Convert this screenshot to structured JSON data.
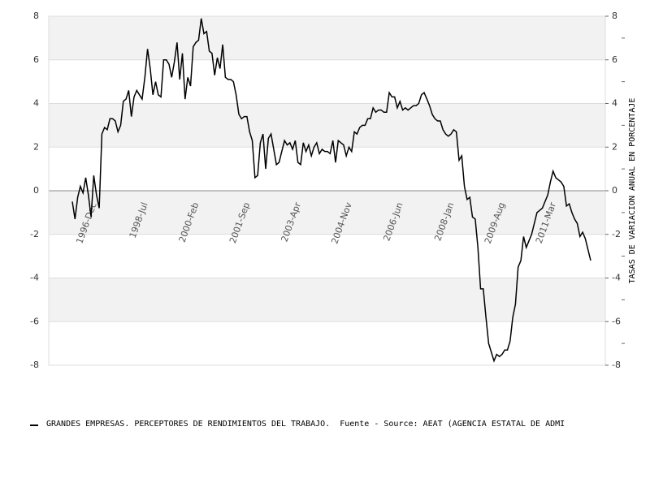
{
  "chart_data": {
    "type": "line",
    "y2label": "TASAS DE VARIACION ANUAL EN PORCENTAJE",
    "source": "Fuente - Source: AEAT (AGENCIA ESTATAL DE ADMI",
    "categories": [
      null,
      null,
      null,
      null,
      null,
      null,
      null,
      "1996-Dec",
      null,
      null,
      null,
      null,
      null,
      null,
      null,
      null,
      null,
      null,
      null,
      null,
      null,
      null,
      null,
      null,
      null,
      null,
      "1998-Jul",
      null,
      null,
      null,
      null,
      null,
      null,
      null,
      null,
      null,
      null,
      null,
      null,
      null,
      null,
      null,
      null,
      null,
      null,
      "2000-Feb",
      null,
      null,
      null,
      null,
      null,
      null,
      null,
      null,
      null,
      null,
      null,
      null,
      null,
      null,
      null,
      null,
      null,
      null,
      "2001-Sep",
      null,
      null,
      null,
      null,
      null,
      null,
      null,
      null,
      null,
      null,
      null,
      null,
      null,
      null,
      null,
      null,
      null,
      null,
      "2003-Apr",
      null,
      null,
      null,
      null,
      null,
      null,
      null,
      null,
      null,
      null,
      null,
      null,
      null,
      null,
      null,
      null,
      null,
      null,
      "2004-Nov",
      null,
      null,
      null,
      null,
      null,
      null,
      null,
      null,
      null,
      null,
      null,
      null,
      null,
      null,
      null,
      null,
      null,
      null,
      "2006-Jun",
      null,
      null,
      null,
      null,
      null,
      null,
      null,
      null,
      null,
      null,
      null,
      null,
      null,
      null,
      null,
      null,
      null,
      null,
      "2008-Jan",
      null,
      null,
      null,
      null,
      null,
      null,
      null,
      null,
      null,
      null,
      null,
      null,
      null,
      null,
      null,
      null,
      null,
      null,
      "2009-Aug",
      null,
      null,
      null,
      null,
      null,
      null,
      null,
      null,
      null,
      null,
      null,
      null,
      null,
      null,
      null,
      null,
      null,
      null,
      "2011-Mar",
      null,
      null,
      null,
      null,
      null,
      null,
      null,
      null,
      null,
      null,
      null,
      null,
      null,
      null,
      null
    ],
    "series": [
      {
        "name": "GRANDES EMPRESAS. PERCEPTORES DE RENDIMIENTOS DEL TRABAJO.",
        "color": "#000000",
        "values": [
          -0.5,
          -1.3,
          -0.3,
          0.2,
          -0.1,
          0.6,
          -0.2,
          -1.2,
          0.7,
          -0.2,
          -0.8,
          2.6,
          2.9,
          2.8,
          3.3,
          3.3,
          3.2,
          2.7,
          3.0,
          4.1,
          4.2,
          4.6,
          3.4,
          4.3,
          4.6,
          4.4,
          4.2,
          5.2,
          6.5,
          5.6,
          4.4,
          5.0,
          4.4,
          4.3,
          6.0,
          6.0,
          5.8,
          5.2,
          5.9,
          6.8,
          5.1,
          6.3,
          4.2,
          5.2,
          4.8,
          6.6,
          6.8,
          6.9,
          7.9,
          7.2,
          7.3,
          6.4,
          6.3,
          5.3,
          6.1,
          5.6,
          6.7,
          5.2,
          5.1,
          5.1,
          5.0,
          4.4,
          3.5,
          3.3,
          3.4,
          3.4,
          2.7,
          2.3,
          0.6,
          0.7,
          2.2,
          2.6,
          1.0,
          2.4,
          2.6,
          1.9,
          1.2,
          1.3,
          1.8,
          2.3,
          2.1,
          2.2,
          1.9,
          2.3,
          1.3,
          1.2,
          2.2,
          1.8,
          2.1,
          1.6,
          2.0,
          2.2,
          1.7,
          1.9,
          1.8,
          1.8,
          1.7,
          2.3,
          1.3,
          2.3,
          2.2,
          2.1,
          1.6,
          2.0,
          1.8,
          2.7,
          2.6,
          2.9,
          3.0,
          3.0,
          3.3,
          3.3,
          3.8,
          3.6,
          3.7,
          3.7,
          3.6,
          3.6,
          4.5,
          4.3,
          4.3,
          3.8,
          4.1,
          3.7,
          3.8,
          3.7,
          3.8,
          3.9,
          3.9,
          4.0,
          4.4,
          4.5,
          4.2,
          3.9,
          3.5,
          3.3,
          3.2,
          3.2,
          2.8,
          2.6,
          2.5,
          2.6,
          2.8,
          2.7,
          1.4,
          1.6,
          0.2,
          -0.4,
          -0.3,
          -1.2,
          -1.3,
          -2.6,
          -4.5,
          -4.5,
          -5.8,
          -7.0,
          -7.4,
          -7.8,
          -7.5,
          -7.6,
          -7.5,
          -7.3,
          -7.3,
          -6.9,
          -5.8,
          -5.2,
          -3.5,
          -3.2,
          -2.1,
          -2.6,
          -2.3,
          -2.0,
          -1.5,
          -1.0,
          -0.9,
          -0.8,
          -0.5,
          -0.2,
          0.4,
          0.9,
          0.6,
          0.5,
          0.4,
          0.2,
          -0.7,
          -0.6,
          -1.0,
          -1.3,
          -1.5,
          -2.1,
          -1.9,
          -2.2,
          -2.7,
          -3.2
        ]
      }
    ],
    "ylim": [
      -8,
      8
    ],
    "yticks": [
      -8,
      -6,
      -4,
      -2,
      0,
      2,
      4,
      6,
      8
    ],
    "y2lim": [
      -8,
      8
    ],
    "y2ticks": [
      -8,
      -6,
      -4,
      -2,
      0,
      2,
      4,
      6,
      8
    ],
    "grid": true
  }
}
